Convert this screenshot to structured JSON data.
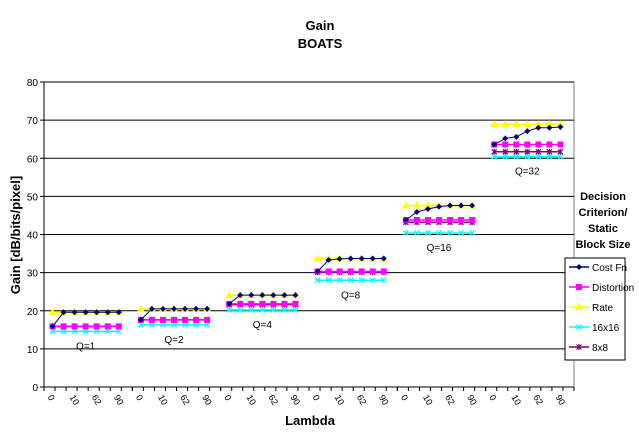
{
  "chart_data": {
    "type": "line",
    "title": "Gain",
    "subtitle": "BOATS",
    "xlabel": "Lambda",
    "ylabel": "Gain [dB/bits/pixel]",
    "ylim": [
      0,
      80
    ],
    "yticks": [
      0,
      10,
      20,
      30,
      40,
      50,
      60,
      70,
      80
    ],
    "grid": true,
    "legend_title": [
      "Decision",
      "Criterion/",
      "Static",
      "Block Size"
    ],
    "legend_position": "right",
    "group_tick_labels": [
      "0",
      "10",
      "62",
      "90"
    ],
    "series": [
      {
        "name": "Cost Fn",
        "color": "#000080",
        "marker": "diamond"
      },
      {
        "name": "Distortion",
        "color": "#ff00ff",
        "marker": "square"
      },
      {
        "name": "Rate",
        "color": "#ffff00",
        "marker": "triangle"
      },
      {
        "name": "16x16",
        "color": "#00ffff",
        "marker": "x"
      },
      {
        "name": "8x8",
        "color": "#800080",
        "marker": "star"
      }
    ],
    "groups": [
      {
        "label": "Q=1",
        "values": {
          "Cost Fn": [
            15.9,
            19.6,
            19.6,
            19.6,
            19.6,
            19.6,
            19.6
          ],
          "Distortion": [
            15.9,
            15.9,
            15.9,
            15.9,
            15.9,
            15.9,
            15.9
          ],
          "Rate": [
            19.6,
            19.6,
            19.6,
            19.6,
            19.6,
            19.6,
            19.6
          ],
          "16x16": [
            14.6,
            14.6,
            14.6,
            14.6,
            14.6,
            14.6,
            14.6
          ],
          "8x8": [
            15.9,
            15.9,
            15.9,
            15.9,
            15.9,
            15.9,
            15.9
          ]
        }
      },
      {
        "label": "Q=2",
        "values": {
          "Cost Fn": [
            17.6,
            20.5,
            20.5,
            20.5,
            20.5,
            20.5,
            20.5
          ],
          "Distortion": [
            17.6,
            17.6,
            17.6,
            17.6,
            17.6,
            17.6,
            17.6
          ],
          "Rate": [
            20.5,
            20.5,
            20.5,
            20.5,
            20.5,
            20.5,
            20.5
          ],
          "16x16": [
            16.3,
            16.3,
            16.3,
            16.3,
            16.3,
            16.3,
            16.3
          ],
          "8x8": [
            17.6,
            17.6,
            17.6,
            17.6,
            17.6,
            17.6,
            17.6
          ]
        }
      },
      {
        "label": "Q=4",
        "values": {
          "Cost Fn": [
            21.8,
            24.1,
            24.1,
            24.1,
            24.1,
            24.1,
            24.1
          ],
          "Distortion": [
            21.8,
            21.8,
            21.8,
            21.8,
            21.8,
            21.8,
            21.8
          ],
          "Rate": [
            24.1,
            24.1,
            24.1,
            24.1,
            24.1,
            24.1,
            24.1
          ],
          "16x16": [
            20.2,
            20.2,
            20.2,
            20.2,
            20.2,
            20.2,
            20.2
          ],
          "8x8": [
            21.6,
            21.6,
            21.6,
            21.6,
            21.6,
            21.6,
            21.6
          ]
        }
      },
      {
        "label": "Q=8",
        "values": {
          "Cost Fn": [
            30.3,
            33.3,
            33.6,
            33.7,
            33.7,
            33.7,
            33.7
          ],
          "Distortion": [
            30.3,
            30.3,
            30.3,
            30.3,
            30.3,
            30.3,
            30.3
          ],
          "Rate": [
            33.7,
            33.7,
            33.7,
            33.7,
            33.7,
            33.7,
            33.7
          ],
          "16x16": [
            28.0,
            28.0,
            28.0,
            28.0,
            28.0,
            28.0,
            28.0
          ],
          "8x8": [
            30.1,
            30.1,
            30.1,
            30.1,
            30.1,
            30.1,
            30.1
          ]
        }
      },
      {
        "label": "Q=16",
        "values": {
          "Cost Fn": [
            43.8,
            45.9,
            46.7,
            47.3,
            47.6,
            47.6,
            47.6
          ],
          "Distortion": [
            43.8,
            43.8,
            43.8,
            43.8,
            43.8,
            43.8,
            43.8
          ],
          "Rate": [
            47.6,
            47.6,
            47.6,
            47.6,
            47.6,
            47.6,
            47.6
          ],
          "16x16": [
            40.4,
            40.4,
            40.4,
            40.4,
            40.4,
            40.4,
            40.4
          ],
          "8x8": [
            43.2,
            43.2,
            43.2,
            43.2,
            43.2,
            43.2,
            43.2
          ]
        }
      },
      {
        "label": "Q=32",
        "values": {
          "Cost Fn": [
            63.6,
            65.2,
            65.6,
            67.1,
            68.0,
            68.0,
            68.2
          ],
          "Distortion": [
            63.6,
            63.6,
            63.6,
            63.6,
            63.6,
            63.6,
            63.6
          ],
          "Rate": [
            69.0,
            69.0,
            69.0,
            69.0,
            69.0,
            69.0,
            69.0
          ],
          "16x16": [
            60.4,
            60.4,
            60.4,
            60.4,
            60.4,
            60.4,
            60.4
          ],
          "8x8": [
            61.7,
            61.7,
            61.7,
            61.7,
            61.7,
            61.7,
            61.7
          ]
        }
      }
    ]
  }
}
